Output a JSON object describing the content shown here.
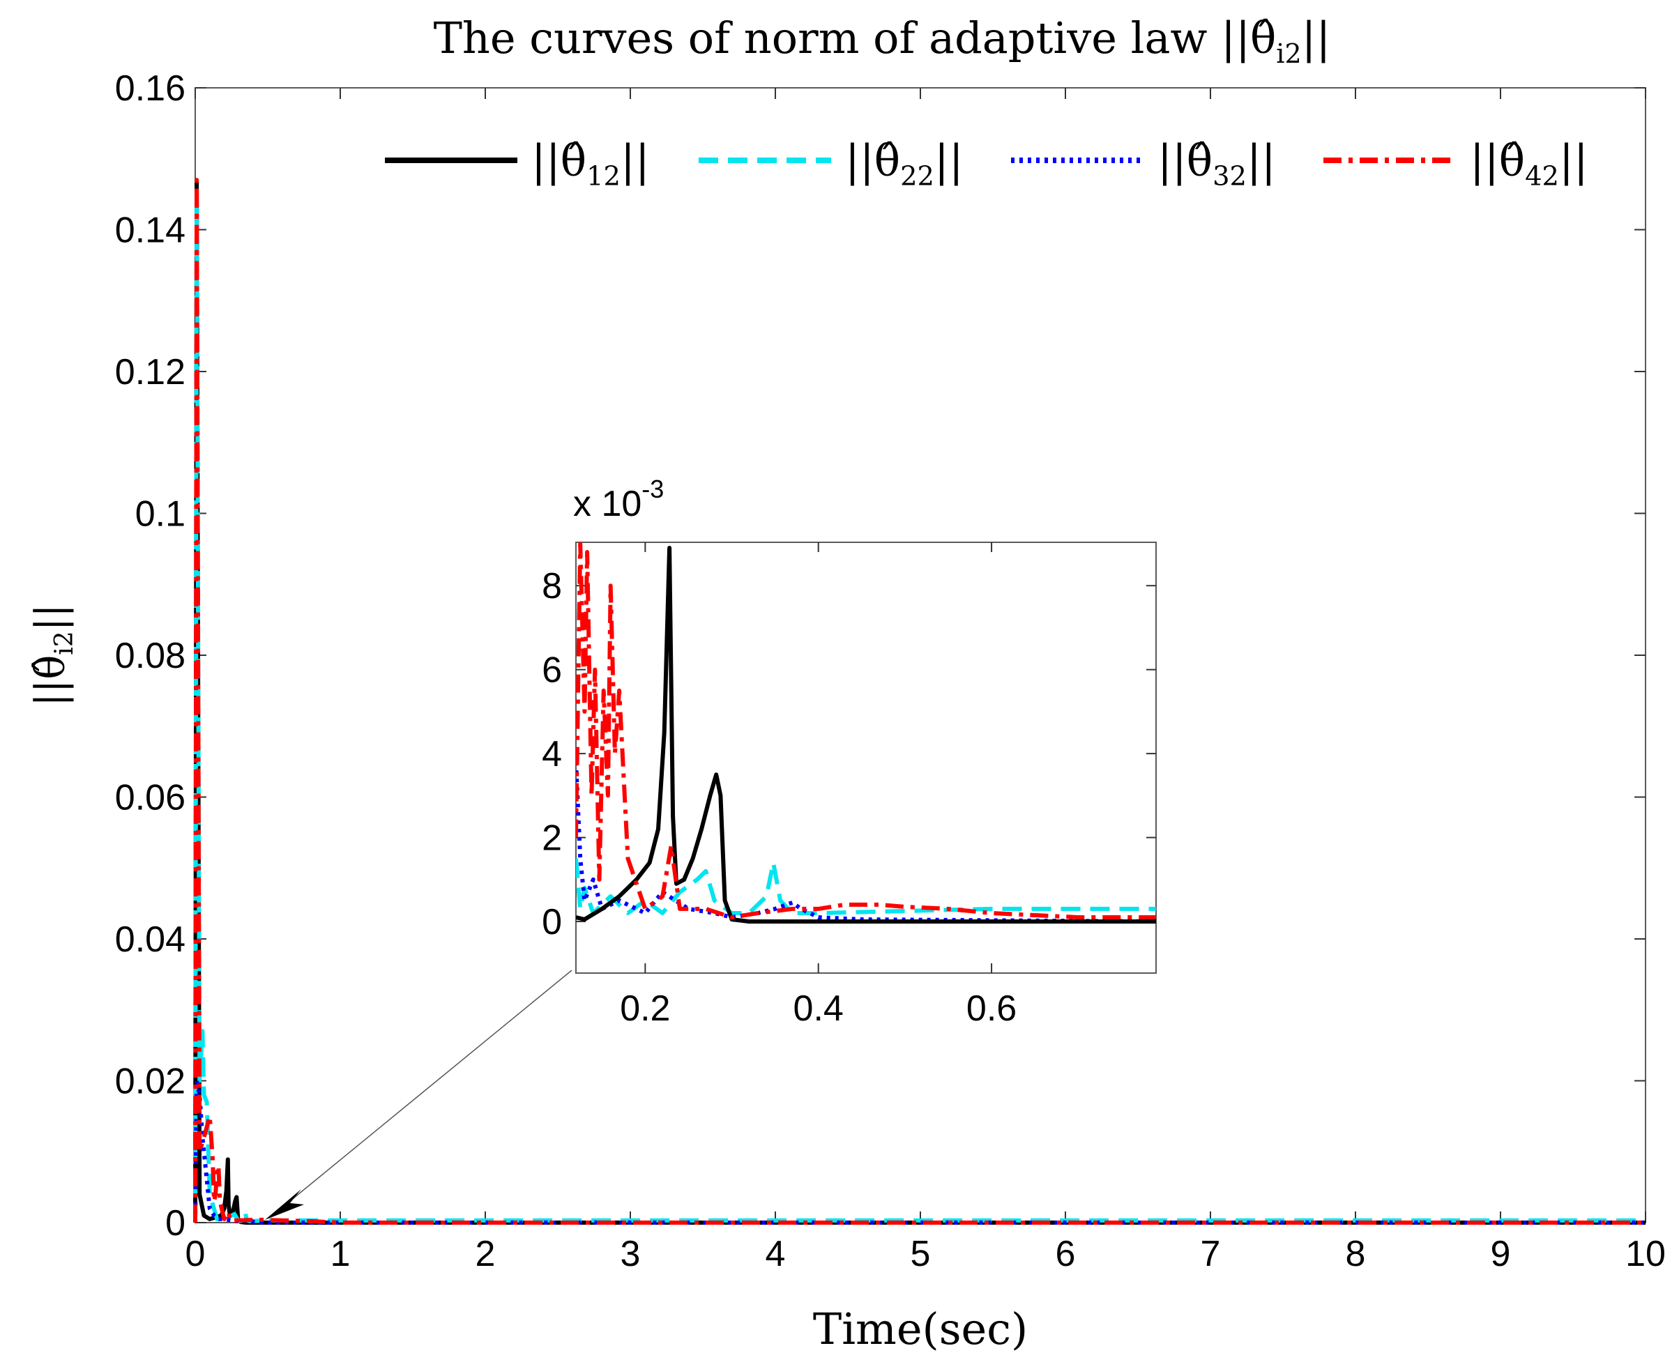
{
  "chart_data": {
    "type": "line",
    "title": "The curves of norm of adaptive law ||θ̂i2||",
    "xlabel": "Time(sec)",
    "ylabel": "||θ̂i2||",
    "xlim": [
      0,
      10
    ],
    "ylim": [
      0,
      0.16
    ],
    "xticks": [
      "0",
      "1",
      "2",
      "3",
      "4",
      "5",
      "6",
      "7",
      "8",
      "9",
      "10"
    ],
    "yticks": [
      "0",
      "0.02",
      "0.04",
      "0.06",
      "0.08",
      "0.1",
      "0.12",
      "0.14",
      "0.16"
    ],
    "legend_position": "top-right",
    "series": [
      {
        "name": "||θ̂12||",
        "color": "#000000",
        "style": "solid",
        "x": [
          0,
          0.01,
          0.03,
          0.06,
          0.1,
          0.15,
          0.18,
          0.2,
          0.215,
          0.225,
          0.23,
          0.24,
          0.26,
          0.275,
          0.285,
          0.295,
          0.31,
          0.35,
          0.5,
          1,
          10
        ],
        "y": [
          0,
          0.147,
          0.004,
          0.001,
          0.0005,
          0.0008,
          0.001,
          0.002,
          0.0045,
          0.0089,
          0.0025,
          0.001,
          0.0015,
          0.003,
          0.0036,
          0.0005,
          0.0001,
          0,
          0,
          0,
          0
        ]
      },
      {
        "name": "||θ̂22||",
        "color": "#00e5ee",
        "style": "dashed",
        "x": [
          0,
          0.01,
          0.03,
          0.05,
          0.06,
          0.08,
          0.1,
          0.15,
          0.2,
          0.24,
          0.27,
          0.3,
          0.33,
          0.345,
          0.355,
          0.38,
          0.5,
          0.7,
          1,
          10
        ],
        "y": [
          0,
          0.145,
          0.02,
          0.027,
          0.018,
          0.017,
          0.004,
          0.0005,
          0.0003,
          0.0009,
          0.0012,
          0.0002,
          0.0003,
          0.0014,
          0.0003,
          0.0002,
          0.0003,
          0.0003,
          0.0003,
          0.0003
        ]
      },
      {
        "name": "||θ̂32||",
        "color": "#0000ff",
        "style": "dotted",
        "x": [
          0,
          0.01,
          0.03,
          0.05,
          0.07,
          0.1,
          0.13,
          0.16,
          0.2,
          0.25,
          0.3,
          0.35,
          0.37,
          0.4,
          0.5,
          1,
          10
        ],
        "y": [
          0,
          0.02,
          0.018,
          0.012,
          0.008,
          0.002,
          0.001,
          0.0005,
          0.0005,
          0.0003,
          0.0002,
          0.0003,
          0.0004,
          0.0001,
          0,
          0,
          0
        ]
      },
      {
        "name": "||θ̂42||",
        "color": "#ff0000",
        "style": "dash-dot",
        "x": [
          0,
          0.01,
          0.03,
          0.06,
          0.1,
          0.12,
          0.13,
          0.14,
          0.15,
          0.16,
          0.17,
          0.2,
          0.23,
          0.24,
          0.3,
          0.4,
          0.45,
          0.6,
          0.8,
          1,
          10
        ],
        "y": [
          0,
          0.147,
          0.01,
          0.012,
          0.015,
          0.009,
          0.003,
          0.004,
          0.007,
          0.008,
          0.003,
          0.0005,
          0.0015,
          0.0003,
          0.0003,
          0.0004,
          0.0004,
          0.0003,
          0.0002,
          0,
          0
        ]
      }
    ],
    "inset": {
      "exponent_label": "x 10",
      "exponent_power": "-3",
      "xlim": [
        0.12,
        0.79
      ],
      "ylim": [
        0,
        9
      ],
      "xticks": [
        "0.2",
        "0.4",
        "0.6"
      ],
      "yticks": [
        "0",
        "2",
        "4",
        "6",
        "8"
      ],
      "series": [
        {
          "name": "||θ̂12||",
          "x": [
            0.12,
            0.13,
            0.15,
            0.17,
            0.19,
            0.205,
            0.215,
            0.222,
            0.228,
            0.232,
            0.236,
            0.245,
            0.255,
            0.265,
            0.275,
            0.282,
            0.287,
            0.292,
            0.3,
            0.32,
            0.4,
            0.79
          ],
          "y": [
            0.1,
            0.05,
            0.3,
            0.6,
            1.0,
            1.4,
            2.2,
            4.5,
            8.9,
            2.5,
            0.9,
            1.0,
            1.5,
            2.2,
            3.0,
            3.5,
            3.0,
            0.5,
            0.05,
            0.0,
            0.0,
            0.0
          ]
        },
        {
          "name": "||θ̂22||",
          "x": [
            0.12,
            0.125,
            0.13,
            0.14,
            0.16,
            0.18,
            0.2,
            0.22,
            0.24,
            0.26,
            0.27,
            0.28,
            0.3,
            0.32,
            0.34,
            0.348,
            0.356,
            0.37,
            0.4,
            0.5,
            0.6,
            0.79
          ],
          "y": [
            1.5,
            0.3,
            0.8,
            0.2,
            0.6,
            0.2,
            0.5,
            0.2,
            0.7,
            1.0,
            1.2,
            0.5,
            0.2,
            0.2,
            0.6,
            1.4,
            0.5,
            0.2,
            0.2,
            0.25,
            0.3,
            0.3
          ]
        },
        {
          "name": "||θ̂32||",
          "x": [
            0.12,
            0.125,
            0.13,
            0.14,
            0.15,
            0.17,
            0.2,
            0.22,
            0.25,
            0.28,
            0.3,
            0.33,
            0.35,
            0.37,
            0.38,
            0.4,
            0.45,
            0.79
          ],
          "y": [
            3.8,
            1.5,
            0.5,
            1.0,
            0.3,
            0.5,
            0.2,
            0.7,
            0.3,
            0.2,
            0.1,
            0.2,
            0.3,
            0.45,
            0.3,
            0.1,
            0.05,
            0.0
          ]
        },
        {
          "name": "||θ̂42||",
          "x": [
            0.12,
            0.125,
            0.13,
            0.133,
            0.138,
            0.142,
            0.147,
            0.152,
            0.157,
            0.16,
            0.165,
            0.17,
            0.18,
            0.2,
            0.22,
            0.23,
            0.24,
            0.27,
            0.3,
            0.33,
            0.37,
            0.4,
            0.43,
            0.47,
            0.5,
            0.55,
            0.6,
            0.7,
            0.79
          ],
          "y": [
            2.0,
            9.0,
            5.0,
            8.8,
            3.0,
            6.0,
            1.0,
            5.5,
            3.0,
            8.0,
            4.0,
            5.5,
            1.5,
            0.3,
            0.6,
            1.8,
            0.3,
            0.3,
            0.1,
            0.2,
            0.3,
            0.3,
            0.4,
            0.4,
            0.35,
            0.3,
            0.2,
            0.1,
            0.1
          ]
        }
      ]
    }
  }
}
